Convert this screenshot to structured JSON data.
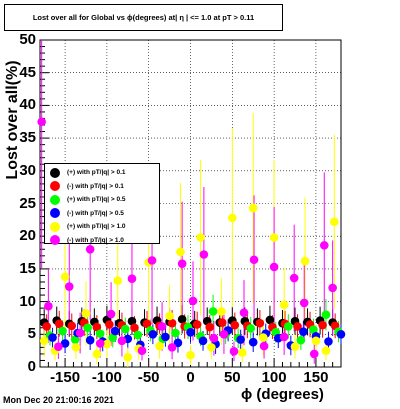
{
  "chart_data": {
    "type": "scatter",
    "title": "Lost over all for Global vs ϕ(degrees) at| η | <= 1.0 at pT > 0.11",
    "xlabel": "ϕ (degrees)",
    "ylabel": "Lost over all(%)",
    "xlim": [
      -180,
      180
    ],
    "ylim": [
      0,
      50
    ],
    "x_ticks": [
      "-150",
      "-100",
      "-50",
      "0",
      "50",
      "100",
      "150"
    ],
    "x_tick_values": [
      -150,
      -100,
      -50,
      0,
      50,
      100,
      150
    ],
    "y_ticks": [
      "0",
      "5",
      "10",
      "15",
      "20",
      "25",
      "30",
      "35",
      "40",
      "45",
      "50"
    ],
    "y_tick_values": [
      0,
      5,
      10,
      15,
      20,
      25,
      30,
      35,
      40,
      45,
      50
    ],
    "grid": true,
    "legend_position": "left-middle",
    "series": [
      {
        "name": "(+) with pT/|q| > 0.1",
        "color": "#000000",
        "x": [
          -175,
          -160,
          -145,
          -130,
          -115,
          -100,
          -85,
          -70,
          -55,
          -40,
          -25,
          -10,
          5,
          20,
          35,
          50,
          65,
          80,
          95,
          110,
          125,
          140,
          155,
          170
        ],
        "y": [
          6.8,
          7.1,
          6.6,
          7.0,
          6.9,
          7.2,
          6.7,
          7.0,
          6.8,
          7.1,
          6.9,
          7.3,
          6.6,
          7.0,
          6.8,
          7.1,
          7.0,
          6.9,
          7.2,
          6.7,
          7.0,
          6.9,
          7.1,
          6.8
        ]
      },
      {
        "name": "(-) with pT/|q| > 0.1",
        "color": "#ff0000",
        "x": [
          -172,
          -157,
          -142,
          -127,
          -112,
          -97,
          -82,
          -67,
          -52,
          -37,
          -22,
          -7,
          8,
          23,
          38,
          53,
          68,
          83,
          98,
          113,
          128,
          143,
          158,
          173
        ],
        "y": [
          6.2,
          6.6,
          6.3,
          6.8,
          6.1,
          6.5,
          6.4,
          6.0,
          6.6,
          6.3,
          6.7,
          6.2,
          6.5,
          6.1,
          6.8,
          6.4,
          6.3,
          6.7,
          6.1,
          6.6,
          6.2,
          6.5,
          6.4,
          6.3
        ]
      },
      {
        "name": "(+) with pT/|q| > 0.5",
        "color": "#00ff00",
        "x": [
          -168,
          -153,
          -138,
          -123,
          -108,
          -93,
          -78,
          -63,
          -48,
          -33,
          -18,
          -3,
          12,
          27,
          42,
          57,
          72,
          87,
          102,
          117,
          132,
          147,
          162,
          177
        ],
        "y": [
          4.8,
          5.5,
          4.2,
          6.0,
          5.1,
          4.5,
          5.8,
          4.9,
          5.6,
          4.3,
          5.2,
          6.1,
          4.7,
          8.5,
          5.0,
          4.4,
          5.9,
          4.6,
          5.3,
          6.2,
          4.1,
          5.7,
          8.0,
          5.4
        ]
      },
      {
        "name": "(-) with pT/|q| > 0.5",
        "color": "#0000ff",
        "x": [
          -165,
          -150,
          -135,
          -120,
          -105,
          -90,
          -75,
          -60,
          -45,
          -30,
          -15,
          0,
          15,
          30,
          45,
          60,
          75,
          90,
          105,
          120,
          135,
          150,
          165,
          180
        ],
        "y": [
          4.5,
          3.6,
          5.2,
          4.1,
          3.9,
          5.5,
          4.3,
          3.4,
          5.0,
          4.6,
          3.7,
          5.3,
          4.0,
          3.5,
          5.6,
          4.2,
          3.8,
          5.1,
          4.4,
          3.3,
          5.4,
          4.7,
          3.9,
          5.0
        ]
      },
      {
        "name": "(+) with pT/|q| > 1.0",
        "color": "#ffff00",
        "x": [
          -175,
          -162,
          -150,
          -137,
          -125,
          -112,
          -100,
          -87,
          -75,
          -62,
          -50,
          -37,
          -25,
          -12,
          0,
          12,
          25,
          37,
          50,
          62,
          75,
          87,
          100,
          112,
          125,
          137,
          150,
          162,
          172
        ],
        "y": [
          4.0,
          2.5,
          13.8,
          3.0,
          8.2,
          2.0,
          3.5,
          13.2,
          1.5,
          2.8,
          16.0,
          3.2,
          7.8,
          17.6,
          1.8,
          19.8,
          3.0,
          8.5,
          22.8,
          2.2,
          24.3,
          4.5,
          19.8,
          9.5,
          3.1,
          16.2,
          4.0,
          2.5,
          22.2
        ]
      },
      {
        "name": "(-) with pT/|q| > 1.0",
        "color": "#ff00ff",
        "x": [
          -178,
          -170,
          -158,
          -145,
          -132,
          -120,
          -108,
          -95,
          -82,
          -70,
          -58,
          -46,
          -34,
          -22,
          -10,
          3,
          16,
          28,
          40,
          52,
          64,
          76,
          88,
          100,
          112,
          124,
          136,
          148,
          160,
          170
        ],
        "y": [
          37.5,
          9.3,
          3.1,
          12.3,
          5.2,
          18.0,
          3.6,
          8.1,
          4.0,
          13.5,
          2.5,
          16.3,
          6.2,
          3.0,
          15.8,
          10.1,
          17.2,
          4.4,
          5.0,
          2.4,
          8.3,
          16.4,
          3.2,
          15.3,
          4.6,
          13.6,
          9.8,
          2.0,
          18.6,
          12.1
        ]
      }
    ]
  },
  "footer": {
    "timestamp": "Mon Dec 20 21:00:16 2021"
  }
}
